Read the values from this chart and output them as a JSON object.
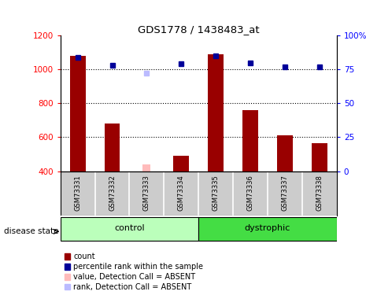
{
  "title": "GDS1778 / 1438483_at",
  "samples": [
    "GSM73331",
    "GSM73332",
    "GSM73333",
    "GSM73334",
    "GSM73335",
    "GSM73336",
    "GSM73337",
    "GSM73338"
  ],
  "count_values": [
    1080,
    680,
    null,
    490,
    1090,
    760,
    610,
    565
  ],
  "count_absent": [
    null,
    null,
    440,
    null,
    null,
    null,
    null,
    null
  ],
  "rank_values": [
    84,
    78,
    null,
    79,
    85,
    80,
    77,
    77
  ],
  "rank_absent": [
    null,
    null,
    72,
    null,
    null,
    null,
    null,
    null
  ],
  "ylim_left": [
    400,
    1200
  ],
  "ylim_right": [
    0,
    100
  ],
  "yticks_left": [
    400,
    600,
    800,
    1000,
    1200
  ],
  "yticks_right": [
    0,
    25,
    50,
    75,
    100
  ],
  "control_indices": [
    0,
    1,
    2,
    3
  ],
  "dystrophic_indices": [
    4,
    5,
    6,
    7
  ],
  "bar_color": "#990000",
  "bar_absent_color": "#ffbbbb",
  "rank_color": "#000099",
  "rank_absent_color": "#bbbbff",
  "control_color": "#bbffbb",
  "dystrophic_color": "#44dd44",
  "sample_bg_color": "#cccccc",
  "legend_items": [
    {
      "label": "count",
      "color": "#990000"
    },
    {
      "label": "percentile rank within the sample",
      "color": "#000099"
    },
    {
      "label": "value, Detection Call = ABSENT",
      "color": "#ffbbbb"
    },
    {
      "label": "rank, Detection Call = ABSENT",
      "color": "#bbbbff"
    }
  ]
}
